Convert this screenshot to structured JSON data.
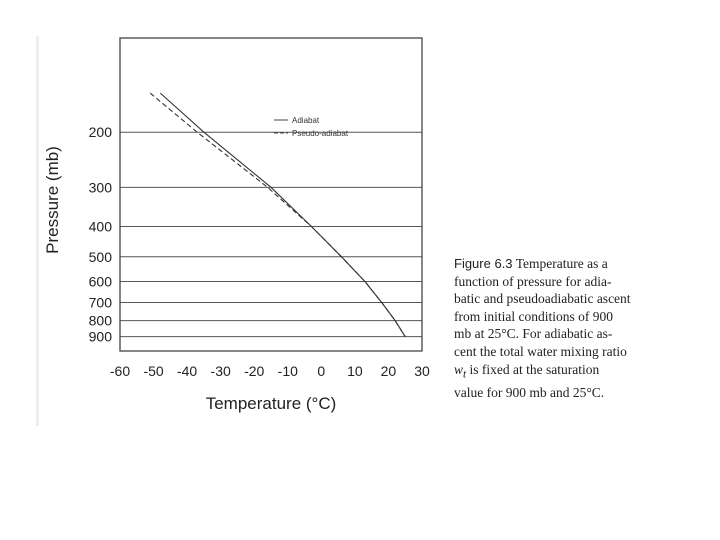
{
  "chart_data": {
    "type": "line",
    "xlabel": "Temperature (°C)",
    "ylabel": "Pressure (mb)",
    "xlim": [
      -60,
      30
    ],
    "ylim": [
      1000,
      100
    ],
    "y_scale": "log",
    "x_ticks": [
      -60,
      -50,
      -40,
      -30,
      -20,
      -10,
      0,
      10,
      20,
      30
    ],
    "y_ticks": [
      200,
      300,
      400,
      500,
      600,
      700,
      800,
      900
    ],
    "grid": {
      "horizontal": true,
      "vertical": false
    },
    "legend_position": "upper-right",
    "series": [
      {
        "name": "Adiabat",
        "style": "solid",
        "points": [
          [
            -48,
            150
          ],
          [
            -35,
            200
          ],
          [
            -15,
            300
          ],
          [
            -3,
            400
          ],
          [
            6,
            500
          ],
          [
            13,
            600
          ],
          [
            18,
            700
          ],
          [
            22,
            800
          ],
          [
            25,
            900
          ]
        ]
      },
      {
        "name": "Pseudo-adiabat",
        "style": "dashed",
        "points": [
          [
            -51,
            150
          ],
          [
            -37,
            200
          ],
          [
            -16,
            300
          ],
          [
            -3,
            400
          ],
          [
            6,
            500
          ],
          [
            13,
            600
          ],
          [
            18,
            700
          ],
          [
            22,
            800
          ],
          [
            25,
            900
          ]
        ]
      }
    ]
  },
  "caption": {
    "label": "Figure 6.3",
    "lines": [
      "Temperature as a",
      "function of pressure for adia-",
      "batic and pseudoadiabatic ascent",
      "from initial conditions of 900",
      "mb at 25°C. For adiabatic as-",
      "cent the total water mixing ratio",
      "w",
      "t",
      " is fixed at the saturation",
      "value for 900 mb and 25°C."
    ]
  }
}
